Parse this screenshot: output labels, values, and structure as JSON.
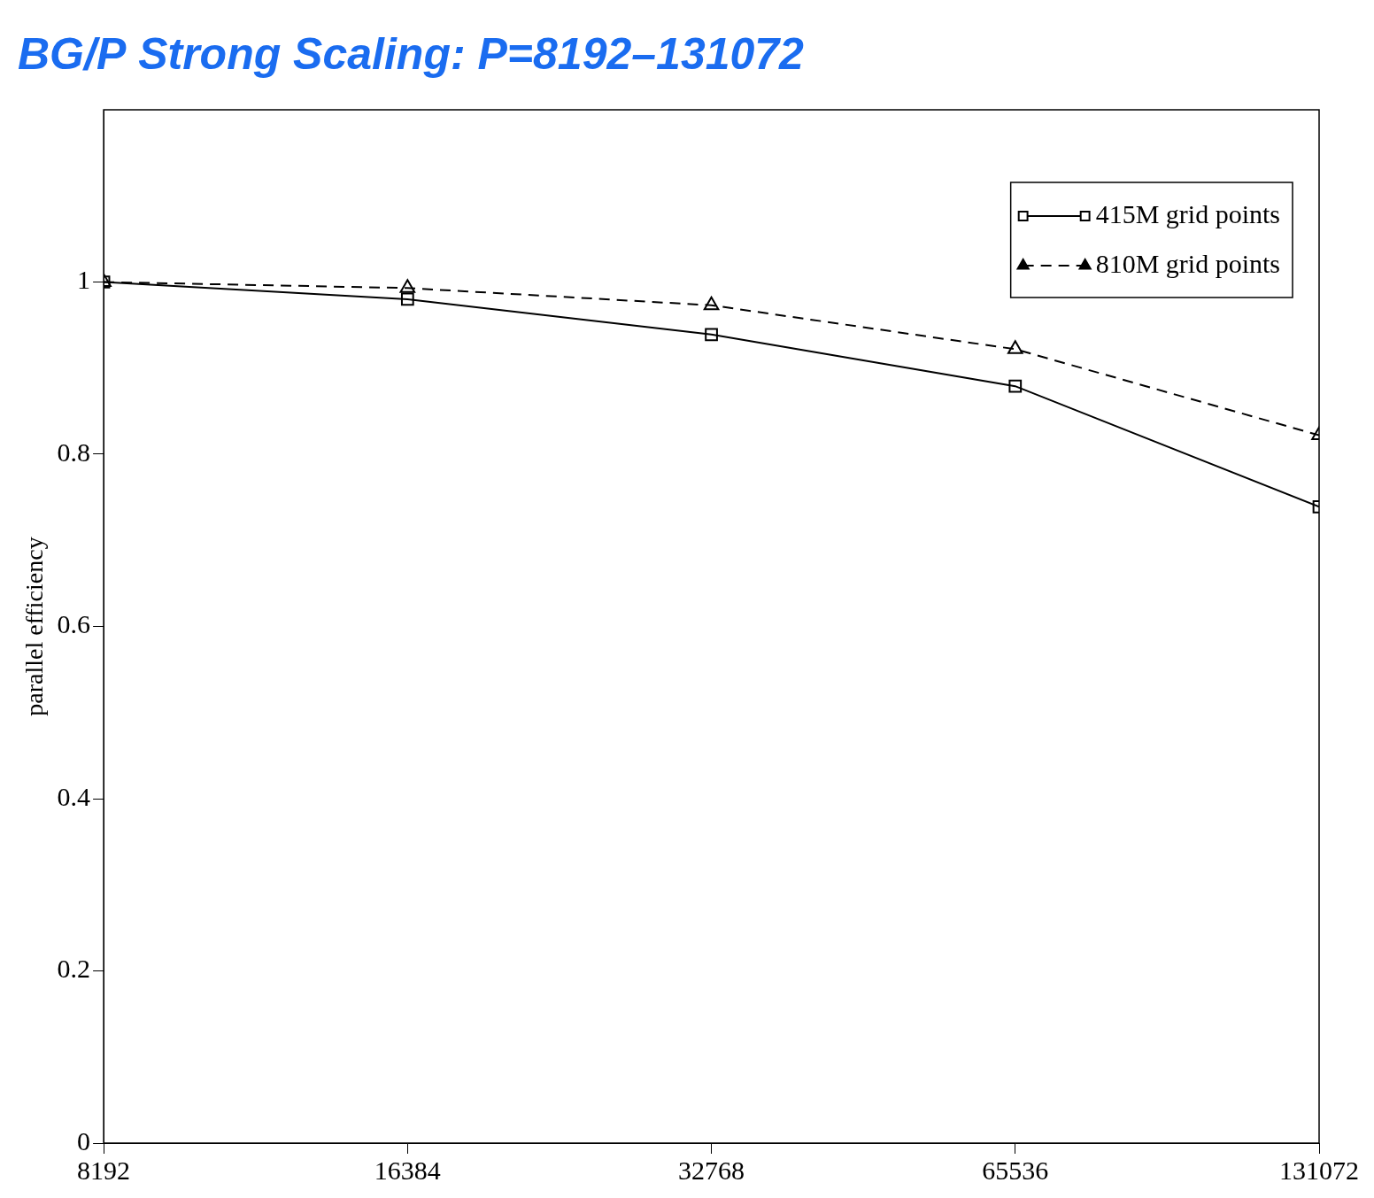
{
  "chart_data": {
    "type": "line",
    "title": "BG/P Strong Scaling: P=8192–131072",
    "y_label": "parallel efficiency",
    "x": [
      8192,
      16384,
      32768,
      65536,
      131072
    ],
    "series": [
      {
        "name": "415M grid points",
        "color": "#000000",
        "marker": "square",
        "line_style": "solid",
        "values": [
          1.0,
          0.98,
          0.939,
          0.879,
          0.739
        ]
      },
      {
        "name": "810M grid points",
        "color": "#000000",
        "marker": "triangle",
        "line_style": "dashed",
        "values": [
          1.0,
          0.993,
          0.973,
          0.922,
          0.822
        ]
      }
    ],
    "log": "x",
    "xlim": [
      8192,
      131072
    ],
    "xticks": [
      8192,
      16384,
      32768,
      65536,
      131072
    ],
    "ylim": [
      0,
      1.2
    ],
    "yticks": [
      0,
      0.2,
      0.4,
      0.6,
      0.8,
      1
    ],
    "grid": false,
    "legend": "upper right"
  }
}
